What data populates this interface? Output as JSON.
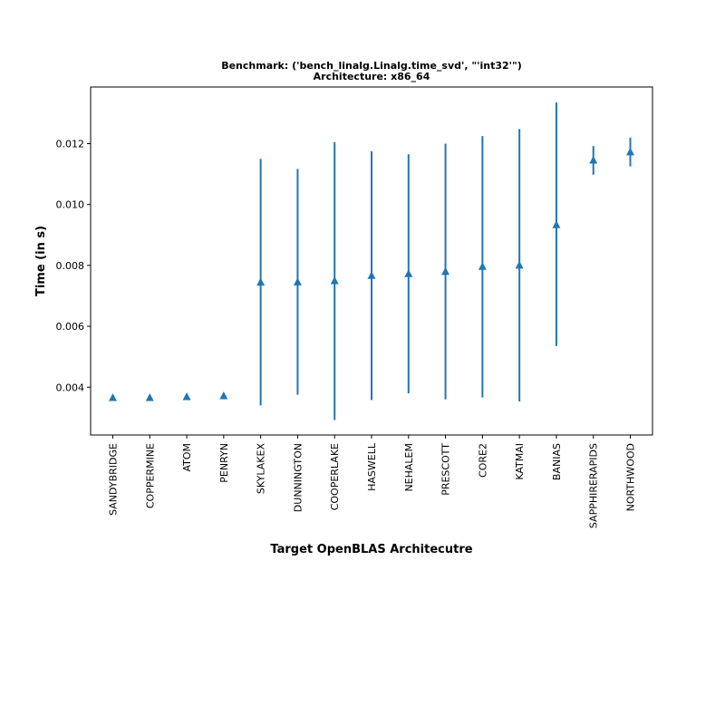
{
  "chart_data": {
    "type": "scatter",
    "title_lines": [
      "Benchmark: ('bench_linalg.Linalg.time_svd', \"'int32'\")",
      "Architecture: x86_64"
    ],
    "xlabel": "Target OpenBLAS Architecutre",
    "ylabel": "Time (in s)",
    "categories": [
      "SANDYBRIDGE",
      "COPPERMINE",
      "ATOM",
      "PENRYN",
      "SKYLAKEX",
      "DUNNINGTON",
      "COOPERLAKE",
      "HASWELL",
      "NEHALEM",
      "PRESCOTT",
      "CORE2",
      "KATMAI",
      "BANIAS",
      "SAPPHIRERAPIDS",
      "NORTHWOOD"
    ],
    "series": [
      {
        "marker": "triangle-up",
        "values": [
          0.00365,
          0.00365,
          0.00368,
          0.00371,
          0.00744,
          0.00745,
          0.00749,
          0.00766,
          0.00772,
          0.00779,
          0.00796,
          0.008,
          0.00933,
          0.01145,
          0.01172
        ],
        "err_low": [
          0.00365,
          0.00365,
          0.00368,
          0.00371,
          0.0034,
          0.00375,
          0.00292,
          0.00358,
          0.0038,
          0.0036,
          0.00366,
          0.00353,
          0.00535,
          0.01098,
          0.01125
        ],
        "err_high": [
          0.00365,
          0.00365,
          0.00368,
          0.00371,
          0.0115,
          0.01117,
          0.01205,
          0.01175,
          0.01165,
          0.012,
          0.01225,
          0.01248,
          0.01335,
          0.01192,
          0.0122
        ]
      }
    ],
    "yticks": [
      "0.004",
      "0.006",
      "0.008",
      "0.010",
      "0.012"
    ],
    "ytick_values": [
      0.004,
      0.006,
      0.008,
      0.01,
      0.012
    ],
    "ylim": [
      0.00243,
      0.01386
    ],
    "grid": false,
    "legend": "none"
  },
  "colors": {
    "series": "#1f77b4",
    "axes": "#000000",
    "background": "#ffffff"
  }
}
